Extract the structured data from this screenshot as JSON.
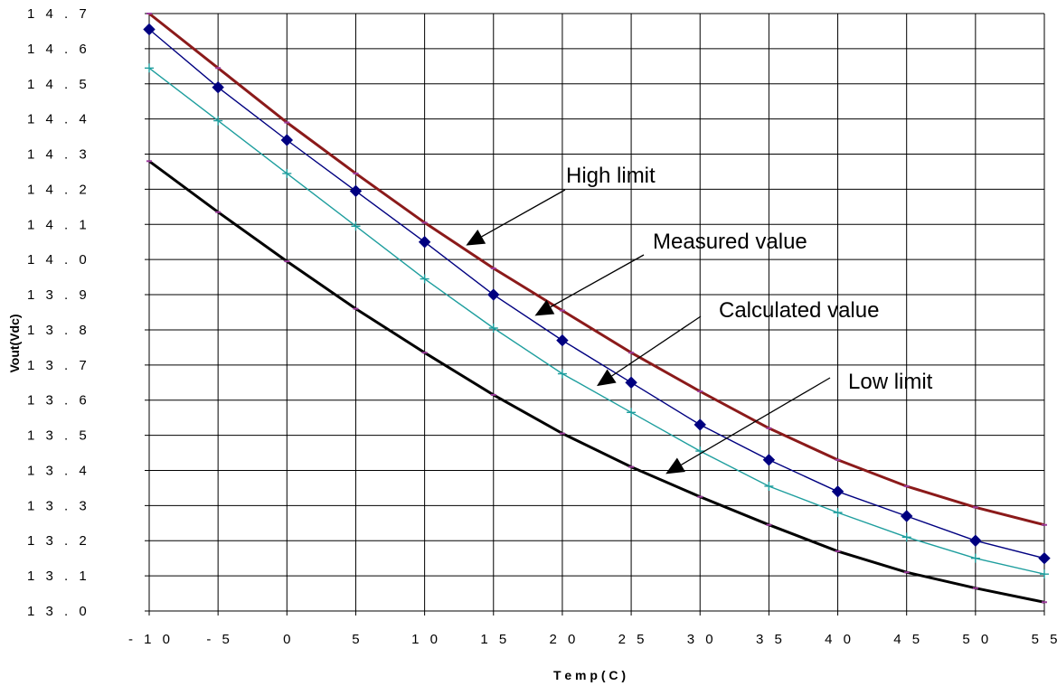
{
  "chart_data": {
    "type": "line",
    "title": "",
    "xlabel": "T e m p ( C )",
    "ylabel": "Vout(Vdc)",
    "x": [
      -10,
      -5,
      0,
      5,
      10,
      15,
      20,
      25,
      30,
      35,
      40,
      45,
      50,
      55
    ],
    "xlim": [
      -10,
      55
    ],
    "ylim": [
      13.0,
      14.7
    ],
    "grid": true,
    "x_tick_labels": [
      "- 1 0",
      "- 5",
      "0",
      "5",
      "1 0",
      "1 5",
      "2 0",
      "2 5",
      "3 0",
      "3 5",
      "4 0",
      "4 5",
      "5 0",
      "5 5"
    ],
    "y_tick_labels": [
      "1 3 . 0",
      "1 3 . 1",
      "1 3 . 2",
      "1 3 . 3",
      "1 3 . 4",
      "1 3 . 5",
      "1 3 . 6",
      "1 3 . 7",
      "1 3 . 8",
      "1 3 . 9",
      "1 4 . 0",
      "1 4 . 1",
      "1 4 . 2",
      "1 4 . 3",
      "1 4 . 4",
      "1 4 . 5",
      "1 4 . 6",
      "1 4 . 7"
    ],
    "series": [
      {
        "name": "High limit",
        "color": "#8b1a1a",
        "marker": "dash",
        "values": [
          14.7,
          14.545,
          14.39,
          14.245,
          14.105,
          13.975,
          13.855,
          13.735,
          13.625,
          13.52,
          13.43,
          13.355,
          13.295,
          13.245
        ]
      },
      {
        "name": "Measured value",
        "color": "#000080",
        "marker": "diamond",
        "values": [
          14.655,
          14.49,
          14.34,
          14.195,
          14.05,
          13.9,
          13.77,
          13.65,
          13.53,
          13.43,
          13.34,
          13.27,
          13.2,
          13.15
        ]
      },
      {
        "name": "Calculated value",
        "color": "#1e9e9e",
        "marker": "plus",
        "values": [
          14.545,
          14.395,
          14.245,
          14.095,
          13.945,
          13.805,
          13.675,
          13.565,
          13.455,
          13.355,
          13.28,
          13.21,
          13.15,
          13.105
        ]
      },
      {
        "name": "Low limit",
        "color": "#000000",
        "marker": "dash",
        "values": [
          14.28,
          14.135,
          13.995,
          13.86,
          13.735,
          13.615,
          13.505,
          13.41,
          13.325,
          13.245,
          13.17,
          13.11,
          13.065,
          13.025
        ]
      }
    ],
    "annotations": [
      {
        "text": "High limit",
        "series": "High limit",
        "point_x": 13,
        "point_y": 14.04
      },
      {
        "text": "Measured value",
        "series": "Measured value",
        "point_x": 18,
        "point_y": 13.84
      },
      {
        "text": "Calculated value",
        "series": "Calculated value",
        "point_x": 22.5,
        "point_y": 13.64
      },
      {
        "text": "Low limit",
        "series": "Low limit",
        "point_x": 27.5,
        "point_y": 13.39
      }
    ]
  }
}
